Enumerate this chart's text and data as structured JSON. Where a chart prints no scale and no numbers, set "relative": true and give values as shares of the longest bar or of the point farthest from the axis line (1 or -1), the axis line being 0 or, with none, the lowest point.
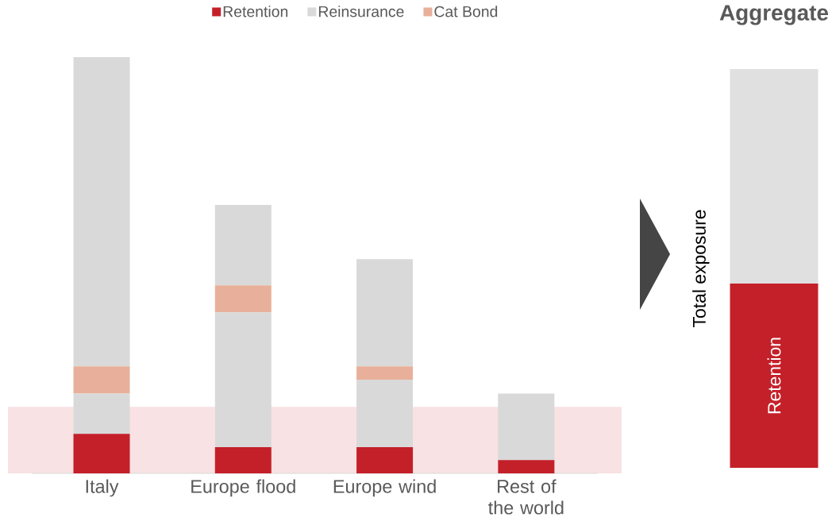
{
  "chart_data": [
    {
      "type": "bar",
      "stacked": true,
      "relative": true,
      "legend": "top",
      "categories": [
        "Italy",
        "Europe flood",
        "Europe wind",
        "Rest of the world"
      ],
      "series": [
        {
          "name": "Retention",
          "color": "#c4202a",
          "values": [
            0.095,
            0.063,
            0.063,
            0.032
          ]
        },
        {
          "name": "Reinsurance",
          "color": "#d9d9d9",
          "values": [
            0.097,
            0.324,
            0.162,
            0.16
          ]
        },
        {
          "name": "Cat Bond",
          "color": "#e8b09a",
          "values": [
            0.065,
            0.065,
            0.032,
            null
          ]
        },
        {
          "color": "#d9d9d9",
          "values": [
            0.743,
            0.193,
            0.258,
            null
          ]
        }
      ],
      "bands": [
        {
          "axis": "y",
          "from": 0,
          "to": 0.16,
          "color": "#f8e2e3"
        }
      ]
    },
    {
      "type": "bar",
      "stacked": true,
      "relative": true,
      "title": "Aggregate",
      "ylabel": "Total exposure",
      "categories": [
        null
      ],
      "series": [
        {
          "name": "Retention",
          "color": "#c4202a",
          "values": [
            0.462
          ]
        },
        {
          "color": "#e0e0e0",
          "values": [
            0.538
          ]
        }
      ]
    }
  ]
}
